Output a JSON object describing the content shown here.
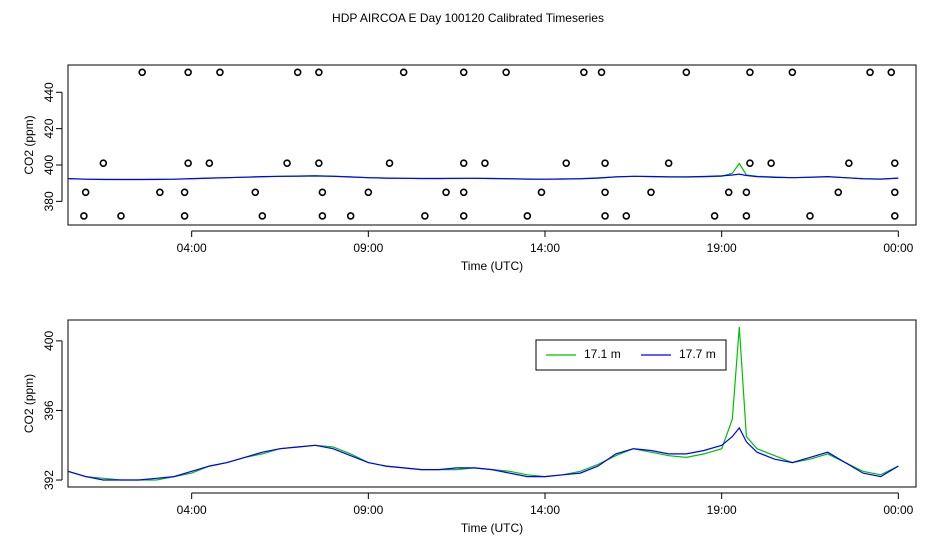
{
  "title": "HDP AIRCOA E  Day 100120  Calibrated Timeseries",
  "colors": {
    "green": "#00c000",
    "blue": "#0000ff",
    "frame": "#000000"
  },
  "chart_data": [
    {
      "type": "scatter",
      "name": "top-panel",
      "xlabel": "Time (UTC)",
      "ylabel": "CO2 (ppm)",
      "xlim": [
        0.5,
        24.5
      ],
      "ylim": [
        367,
        455
      ],
      "xticks": [
        4,
        9,
        14,
        19,
        24
      ],
      "xtick_labels": [
        "04:00",
        "09:00",
        "14:00",
        "19:00",
        "00:00"
      ],
      "yticks": [
        380,
        400,
        420,
        440
      ],
      "ytick_labels": [
        "380",
        "400",
        "420",
        "440"
      ],
      "grid": false,
      "points": [
        [
          2.6,
          451
        ],
        [
          3.9,
          451
        ],
        [
          4.8,
          451
        ],
        [
          7.0,
          451
        ],
        [
          7.6,
          451
        ],
        [
          10.0,
          451
        ],
        [
          11.7,
          451
        ],
        [
          12.9,
          451
        ],
        [
          15.1,
          451
        ],
        [
          15.6,
          451
        ],
        [
          18.0,
          451
        ],
        [
          19.8,
          451
        ],
        [
          21.0,
          451
        ],
        [
          23.2,
          451
        ],
        [
          23.8,
          451
        ],
        [
          1.5,
          401
        ],
        [
          3.9,
          401
        ],
        [
          4.5,
          401
        ],
        [
          6.7,
          401
        ],
        [
          7.6,
          401
        ],
        [
          9.6,
          401
        ],
        [
          11.7,
          401
        ],
        [
          12.3,
          401
        ],
        [
          14.6,
          401
        ],
        [
          15.7,
          401
        ],
        [
          17.5,
          401
        ],
        [
          19.8,
          401
        ],
        [
          20.4,
          401
        ],
        [
          22.6,
          401
        ],
        [
          23.9,
          401
        ],
        [
          1.0,
          385
        ],
        [
          3.1,
          385
        ],
        [
          3.8,
          385
        ],
        [
          5.8,
          385
        ],
        [
          7.7,
          385
        ],
        [
          9.0,
          385
        ],
        [
          11.2,
          385
        ],
        [
          11.7,
          385
        ],
        [
          13.9,
          385
        ],
        [
          15.7,
          385
        ],
        [
          17.0,
          385
        ],
        [
          19.2,
          385
        ],
        [
          19.7,
          385
        ],
        [
          22.3,
          385
        ],
        [
          23.9,
          385
        ],
        [
          0.95,
          372
        ],
        [
          2.0,
          372
        ],
        [
          3.8,
          372
        ],
        [
          6.0,
          372
        ],
        [
          7.7,
          372
        ],
        [
          8.5,
          372
        ],
        [
          10.6,
          372
        ],
        [
          11.7,
          372
        ],
        [
          13.5,
          372
        ],
        [
          15.7,
          372
        ],
        [
          16.3,
          372
        ],
        [
          18.8,
          372
        ],
        [
          19.7,
          372
        ],
        [
          21.5,
          372
        ],
        [
          23.9,
          372
        ]
      ],
      "series": [
        {
          "name": "17.1 m",
          "x": [
            0.5,
            1.0,
            1.5,
            2.0,
            2.5,
            3.0,
            3.5,
            4.0,
            4.5,
            5.0,
            5.5,
            6.0,
            6.5,
            7.0,
            7.5,
            8.0,
            8.5,
            9.0,
            9.5,
            10.0,
            10.5,
            11.0,
            11.5,
            12.0,
            12.5,
            13.0,
            13.5,
            14.0,
            14.5,
            15.0,
            15.5,
            16.0,
            16.5,
            17.0,
            17.5,
            18.0,
            18.5,
            19.0,
            19.3,
            19.5,
            19.7,
            20.0,
            20.5,
            21.0,
            21.5,
            22.0,
            22.5,
            23.0,
            23.5,
            24.0
          ],
          "values": [
            392.5,
            392.2,
            392.1,
            392.0,
            392.0,
            392.0,
            392.2,
            392.4,
            392.8,
            393.0,
            393.3,
            393.5,
            393.8,
            393.9,
            394.0,
            393.9,
            393.5,
            393.0,
            392.8,
            392.7,
            392.6,
            392.6,
            392.6,
            392.7,
            392.6,
            392.5,
            392.3,
            392.2,
            392.3,
            392.5,
            392.9,
            393.4,
            393.8,
            393.6,
            393.4,
            393.3,
            393.5,
            393.8,
            395.5,
            400.8,
            394.5,
            393.8,
            393.4,
            393.0,
            393.2,
            393.5,
            393.0,
            392.5,
            392.3,
            392.8
          ]
        },
        {
          "name": "17.7 m",
          "x": [
            0.5,
            1.0,
            1.5,
            2.0,
            2.5,
            3.0,
            3.5,
            4.0,
            4.5,
            5.0,
            5.5,
            6.0,
            6.5,
            7.0,
            7.5,
            8.0,
            8.5,
            9.0,
            9.5,
            10.0,
            10.5,
            11.0,
            11.5,
            12.0,
            12.5,
            13.0,
            13.5,
            14.0,
            14.5,
            15.0,
            15.5,
            16.0,
            16.5,
            17.0,
            17.5,
            18.0,
            18.5,
            19.0,
            19.3,
            19.5,
            19.7,
            20.0,
            20.5,
            21.0,
            21.5,
            22.0,
            22.5,
            23.0,
            23.5,
            24.0
          ],
          "values": [
            392.5,
            392.2,
            392.0,
            392.0,
            392.0,
            392.1,
            392.2,
            392.5,
            392.8,
            393.0,
            393.3,
            393.6,
            393.8,
            393.9,
            394.0,
            393.8,
            393.4,
            393.0,
            392.8,
            392.7,
            392.6,
            392.6,
            392.7,
            392.7,
            392.6,
            392.4,
            392.2,
            392.2,
            392.3,
            392.4,
            392.8,
            393.5,
            393.8,
            393.7,
            393.5,
            393.5,
            393.7,
            394.0,
            394.5,
            395.0,
            394.2,
            393.6,
            393.2,
            393.0,
            393.3,
            393.6,
            393.0,
            392.4,
            392.2,
            392.8
          ]
        }
      ]
    },
    {
      "type": "line",
      "name": "bottom-panel",
      "xlabel": "Time (UTC)",
      "ylabel": "CO2 (ppm)",
      "xlim": [
        0.5,
        24.5
      ],
      "ylim": [
        391.6,
        401.2
      ],
      "xticks": [
        4,
        9,
        14,
        19,
        24
      ],
      "xtick_labels": [
        "04:00",
        "09:00",
        "14:00",
        "19:00",
        "00:00"
      ],
      "yticks": [
        392,
        396,
        400
      ],
      "ytick_labels": [
        "392",
        "396",
        "400"
      ],
      "grid": false,
      "legend": {
        "placement": "top-right",
        "entries": [
          "17.1 m",
          "17.7 m"
        ]
      },
      "series": [
        {
          "name": "17.1 m",
          "x": [
            0.5,
            1.0,
            1.5,
            2.0,
            2.5,
            3.0,
            3.5,
            4.0,
            4.5,
            5.0,
            5.5,
            6.0,
            6.5,
            7.0,
            7.5,
            8.0,
            8.5,
            9.0,
            9.5,
            10.0,
            10.5,
            11.0,
            11.5,
            12.0,
            12.5,
            13.0,
            13.5,
            14.0,
            14.5,
            15.0,
            15.5,
            16.0,
            16.5,
            17.0,
            17.5,
            18.0,
            18.5,
            19.0,
            19.3,
            19.5,
            19.7,
            20.0,
            20.5,
            21.0,
            21.5,
            22.0,
            22.5,
            23.0,
            23.5,
            24.0
          ],
          "values": [
            392.5,
            392.2,
            392.1,
            392.0,
            392.0,
            392.0,
            392.2,
            392.4,
            392.8,
            393.0,
            393.3,
            393.5,
            393.8,
            393.9,
            394.0,
            393.9,
            393.5,
            393.0,
            392.8,
            392.7,
            392.6,
            392.6,
            392.6,
            392.7,
            392.6,
            392.5,
            392.3,
            392.2,
            392.3,
            392.5,
            392.9,
            393.4,
            393.8,
            393.6,
            393.4,
            393.3,
            393.5,
            393.8,
            395.5,
            400.8,
            394.5,
            393.8,
            393.4,
            393.0,
            393.2,
            393.5,
            393.0,
            392.5,
            392.3,
            392.8
          ]
        },
        {
          "name": "17.7 m",
          "x": [
            0.5,
            1.0,
            1.5,
            2.0,
            2.5,
            3.0,
            3.5,
            4.0,
            4.5,
            5.0,
            5.5,
            6.0,
            6.5,
            7.0,
            7.5,
            8.0,
            8.5,
            9.0,
            9.5,
            10.0,
            10.5,
            11.0,
            11.5,
            12.0,
            12.5,
            13.0,
            13.5,
            14.0,
            14.5,
            15.0,
            15.5,
            16.0,
            16.5,
            17.0,
            17.5,
            18.0,
            18.5,
            19.0,
            19.3,
            19.5,
            19.7,
            20.0,
            20.5,
            21.0,
            21.5,
            22.0,
            22.5,
            23.0,
            23.5,
            24.0
          ],
          "values": [
            392.5,
            392.2,
            392.0,
            392.0,
            392.0,
            392.1,
            392.2,
            392.5,
            392.8,
            393.0,
            393.3,
            393.6,
            393.8,
            393.9,
            394.0,
            393.8,
            393.4,
            393.0,
            392.8,
            392.7,
            392.6,
            392.6,
            392.7,
            392.7,
            392.6,
            392.4,
            392.2,
            392.2,
            392.3,
            392.4,
            392.8,
            393.5,
            393.8,
            393.7,
            393.5,
            393.5,
            393.7,
            394.0,
            394.5,
            395.0,
            394.2,
            393.6,
            393.2,
            393.0,
            393.3,
            393.6,
            393.0,
            392.4,
            392.2,
            392.8
          ]
        }
      ]
    }
  ]
}
